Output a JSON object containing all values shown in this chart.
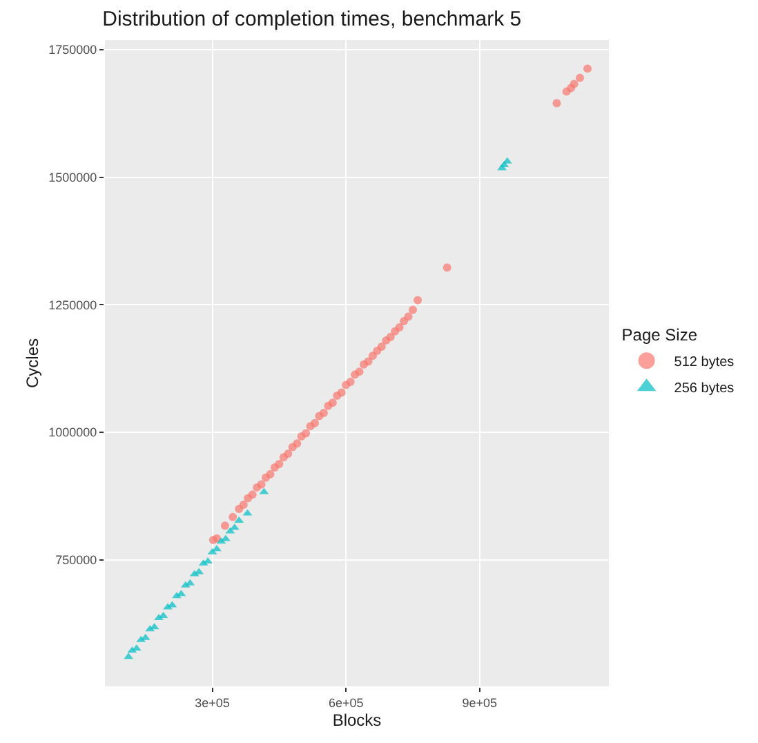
{
  "chart_data": {
    "type": "scatter",
    "title": "Distribution of completion times, benchmark 5",
    "xlabel": "Blocks",
    "ylabel": "Cycles",
    "legend_title": "Page Size",
    "xlim": [
      59000,
      1190000
    ],
    "ylim": [
      502000,
      1769000
    ],
    "xticks": [
      {
        "value": 300000,
        "label": "3e+05"
      },
      {
        "value": 600000,
        "label": "6e+05"
      },
      {
        "value": 900000,
        "label": "9e+05"
      }
    ],
    "yticks": [
      750000,
      1000000,
      1250000,
      1500000,
      1750000
    ],
    "grid": true,
    "legend": "right",
    "series": [
      {
        "name": "512 bytes",
        "color": "#f8766d",
        "marker": "circle",
        "x": [
          302000,
          310000,
          328500,
          346000,
          360000,
          370000,
          380000,
          390000,
          400000,
          410000,
          420000,
          430000,
          440000,
          450000,
          460000,
          470000,
          480000,
          490000,
          500000,
          510000,
          520000,
          530000,
          540000,
          550000,
          560000,
          570000,
          580000,
          590000,
          600000,
          610000,
          620000,
          630000,
          640000,
          650000,
          660000,
          670000,
          680000,
          690000,
          700000,
          710000,
          720000,
          730000,
          740000,
          750000,
          761000,
          827000,
          1073000,
          1095000,
          1105000,
          1112000,
          1125000,
          1142000
        ],
        "values": [
          789000,
          792000,
          817000,
          834000,
          850000,
          858000,
          871000,
          878000,
          892000,
          898000,
          911000,
          918000,
          931000,
          938000,
          951000,
          958000,
          971000,
          978000,
          992000,
          998000,
          1012000,
          1018000,
          1032000,
          1038000,
          1052000,
          1058000,
          1072000,
          1078000,
          1093000,
          1099000,
          1113000,
          1119000,
          1133000,
          1139000,
          1150000,
          1160000,
          1168000,
          1180000,
          1187000,
          1198000,
          1206000,
          1218000,
          1227000,
          1240000,
          1259000,
          1323000,
          1645000,
          1668000,
          1675000,
          1683000,
          1695000,
          1713000
        ]
      },
      {
        "name": "256 bytes",
        "color": "#00bfc4",
        "marker": "triangle",
        "x": [
          112000,
          120000,
          130000,
          140000,
          150000,
          160000,
          170000,
          180000,
          190000,
          200000,
          210000,
          220000,
          230000,
          240000,
          250000,
          260000,
          270000,
          280000,
          290000,
          300000,
          310000,
          320000,
          330000,
          340000,
          350000,
          360000,
          379000,
          416000,
          950000,
          955000,
          962000
        ],
        "values": [
          560000,
          572000,
          576000,
          593000,
          597000,
          614000,
          618000,
          636000,
          640000,
          657000,
          661000,
          679000,
          683000,
          700000,
          704000,
          722000,
          726000,
          743000,
          747000,
          765000,
          771000,
          786000,
          791000,
          806000,
          813000,
          827000,
          841000,
          883000,
          1518000,
          1524000,
          1531000
        ]
      }
    ]
  }
}
